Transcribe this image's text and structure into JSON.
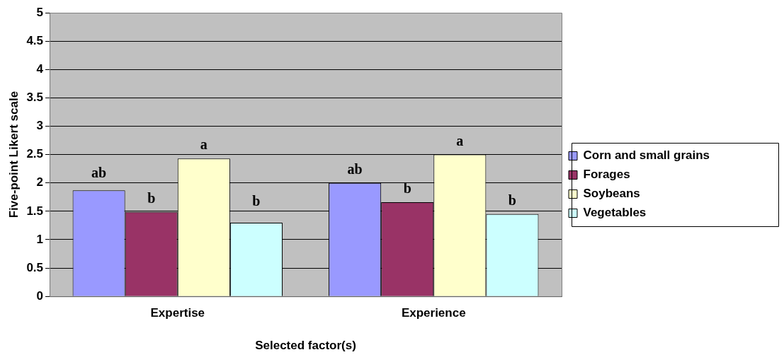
{
  "chart_data": {
    "type": "bar",
    "xlabel": "Selected factor(s)",
    "ylabel": "Five-point Likert scale",
    "categories": [
      "Expertise",
      "Experience"
    ],
    "series": [
      {
        "name": "Corn and small grains",
        "color": "#9999ff",
        "values": [
          1.87,
          2.0
        ],
        "value_labels": [
          "ab",
          "ab"
        ]
      },
      {
        "name": "Forages",
        "color": "#993366",
        "values": [
          1.49,
          1.66
        ],
        "value_labels": [
          "b",
          "b"
        ]
      },
      {
        "name": "Soybeans",
        "color": "#ffffcc",
        "values": [
          2.43,
          2.5
        ],
        "value_labels": [
          "a",
          "a"
        ]
      },
      {
        "name": "Vegetables",
        "color": "#ccffff",
        "values": [
          1.3,
          1.45
        ],
        "value_labels": [
          "b",
          "b"
        ]
      }
    ],
    "ylim": [
      0,
      5
    ],
    "yticks": [
      0,
      0.5,
      1,
      1.5,
      2,
      2.5,
      3,
      3.5,
      4,
      4.5,
      5
    ],
    "grid": "y",
    "legend": "right"
  }
}
